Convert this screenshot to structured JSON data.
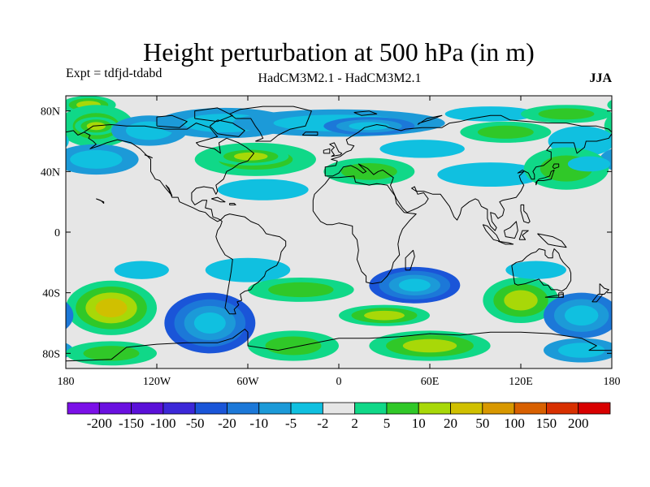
{
  "title": "Height perturbation at 500 hPa (in m)",
  "experiment": "Expt = tdfjd-tdabd",
  "models": "HadCM3M2.1 - HadCM3M2.1",
  "season": "JJA",
  "lat_ticks": [
    {
      "value": 80,
      "label": "80N"
    },
    {
      "value": 40,
      "label": "40N"
    },
    {
      "value": 0,
      "label": "0"
    },
    {
      "value": -40,
      "label": "40S"
    },
    {
      "value": -80,
      "label": "80S"
    }
  ],
  "lon_ticks": [
    {
      "value": -180,
      "label": "180"
    },
    {
      "value": -120,
      "label": "120W"
    },
    {
      "value": -60,
      "label": "60W"
    },
    {
      "value": 0,
      "label": "0"
    },
    {
      "value": 60,
      "label": "60E"
    },
    {
      "value": 120,
      "label": "120E"
    },
    {
      "value": 180,
      "label": "180"
    }
  ],
  "colorbar": {
    "colors": [
      "#7b10e8",
      "#6a10e0",
      "#5a10d8",
      "#3c28d8",
      "#1a55d8",
      "#1c78d8",
      "#1c9ad8",
      "#10c0e0",
      "#e6e6e6",
      "#10d888",
      "#30c828",
      "#a8d808",
      "#d0c000",
      "#d89800",
      "#d86000",
      "#d83000",
      "#d80000"
    ],
    "labels": [
      "-200",
      "-150",
      "-100",
      "-50",
      "-20",
      "-10",
      "-5",
      "-2",
      "2",
      "5",
      "10",
      "20",
      "50",
      "100",
      "150",
      "200"
    ]
  },
  "chart_data": {
    "type": "heatmap",
    "variable": "Height perturbation at 500 hPa (in m)",
    "xlim": [
      -180,
      180
    ],
    "ylim": [
      -90,
      90
    ],
    "levels": [
      -200,
      -150,
      -100,
      -50,
      -20,
      -10,
      -5,
      -2,
      2,
      5,
      10,
      20,
      50,
      100,
      150,
      200
    ],
    "anomalies": [
      {
        "lon": -165,
        "lat": 84,
        "rx": 18,
        "ry": 6,
        "value": 12
      },
      {
        "lon": -160,
        "lat": 70,
        "rx": 25,
        "ry": 14,
        "value": 8
      },
      {
        "lon": -160,
        "lat": 70,
        "rx": 14,
        "ry": 6,
        "value": 15
      },
      {
        "lon": -125,
        "lat": 67,
        "rx": 25,
        "ry": 10,
        "value": -6
      },
      {
        "lon": -75,
        "lat": 72,
        "rx": 45,
        "ry": 10,
        "value": -7
      },
      {
        "lon": 0,
        "lat": 72,
        "rx": 70,
        "ry": 9,
        "value": -8
      },
      {
        "lon": 20,
        "lat": 70,
        "rx": 30,
        "ry": 6,
        "value": -12
      },
      {
        "lon": 100,
        "lat": 78,
        "rx": 30,
        "ry": 5,
        "value": -4
      },
      {
        "lon": 150,
        "lat": 78,
        "rx": 30,
        "ry": 6,
        "value": 6
      },
      {
        "lon": 110,
        "lat": 66,
        "rx": 30,
        "ry": 7,
        "value": 6
      },
      {
        "lon": 160,
        "lat": 60,
        "rx": 22,
        "ry": 10,
        "value": -4
      },
      {
        "lon": -160,
        "lat": 48,
        "rx": 28,
        "ry": 10,
        "value": -6
      },
      {
        "lon": -55,
        "lat": 48,
        "rx": 40,
        "ry": 11,
        "value": 7
      },
      {
        "lon": -58,
        "lat": 50,
        "rx": 25,
        "ry": 6,
        "value": 12
      },
      {
        "lon": -50,
        "lat": 28,
        "rx": 30,
        "ry": 7,
        "value": -4
      },
      {
        "lon": 20,
        "lat": 40,
        "rx": 30,
        "ry": 9,
        "value": 6
      },
      {
        "lon": 55,
        "lat": 55,
        "rx": 28,
        "ry": 6,
        "value": -3
      },
      {
        "lon": 100,
        "lat": 38,
        "rx": 35,
        "ry": 8,
        "value": -4
      },
      {
        "lon": 150,
        "lat": 42,
        "rx": 28,
        "ry": 14,
        "value": 6
      },
      {
        "lon": 165,
        "lat": 45,
        "rx": 14,
        "ry": 5,
        "value": -4
      },
      {
        "lon": -150,
        "lat": -50,
        "rx": 30,
        "ry": 18,
        "value": 25
      },
      {
        "lon": -85,
        "lat": -60,
        "rx": 30,
        "ry": 20,
        "value": -28
      },
      {
        "lon": -60,
        "lat": -25,
        "rx": 28,
        "ry": 8,
        "value": -4
      },
      {
        "lon": -25,
        "lat": -38,
        "rx": 35,
        "ry": 8,
        "value": 7
      },
      {
        "lon": 50,
        "lat": -35,
        "rx": 30,
        "ry": 12,
        "value": -25
      },
      {
        "lon": 30,
        "lat": -55,
        "rx": 30,
        "ry": 7,
        "value": 15
      },
      {
        "lon": 120,
        "lat": -45,
        "rx": 25,
        "ry": 15,
        "value": 15
      },
      {
        "lon": 160,
        "lat": -55,
        "rx": 25,
        "ry": 15,
        "value": -15
      },
      {
        "lon": 160,
        "lat": -78,
        "rx": 25,
        "ry": 8,
        "value": -5
      },
      {
        "lon": 60,
        "lat": -75,
        "rx": 40,
        "ry": 10,
        "value": 12
      },
      {
        "lon": -30,
        "lat": -75,
        "rx": 30,
        "ry": 10,
        "value": 7
      },
      {
        "lon": -150,
        "lat": -80,
        "rx": 30,
        "ry": 8,
        "value": 5
      },
      {
        "lon": 130,
        "lat": -25,
        "rx": 20,
        "ry": 6,
        "value": -4
      },
      {
        "lon": -130,
        "lat": -25,
        "rx": 18,
        "ry": 6,
        "value": -4
      }
    ]
  }
}
